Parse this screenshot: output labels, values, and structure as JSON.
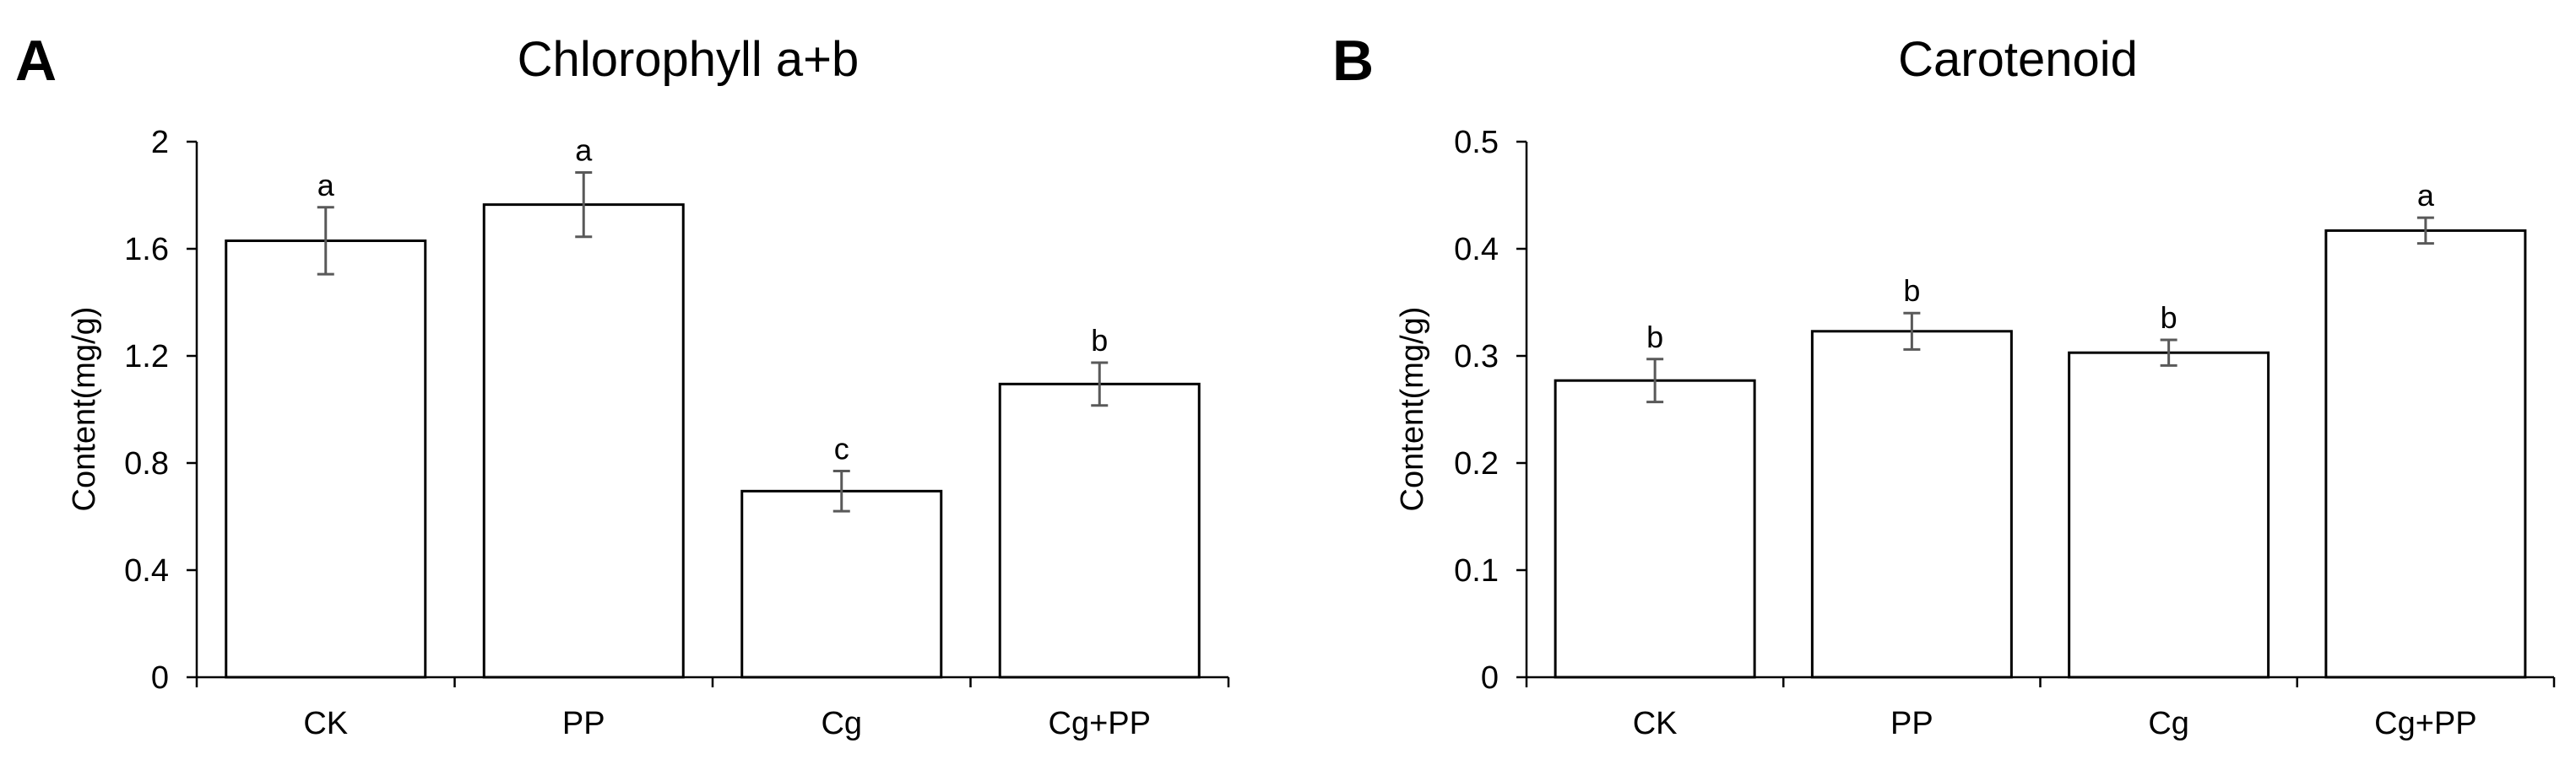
{
  "chart_data": [
    {
      "panel": "A",
      "type": "bar",
      "title": "Chlorophyll a+b",
      "xlabel": "",
      "ylabel": "Content(mg/g)",
      "categories": [
        "CK",
        "PP",
        "Cg",
        "Cg+PP"
      ],
      "values": [
        1.63,
        1.765,
        0.695,
        1.095
      ],
      "errors": [
        0.125,
        0.12,
        0.075,
        0.08
      ],
      "significance": [
        "a",
        "a",
        "c",
        "b"
      ],
      "ylim": [
        0,
        2
      ],
      "yticks": [
        "0",
        "0.4",
        "0.8",
        "1.2",
        "1.6",
        "2"
      ],
      "grid": false,
      "colors": {
        "bar_fill": "#ffffff",
        "bar_stroke": "#000000",
        "error_bar": "#595959",
        "axis": "#000000"
      }
    },
    {
      "panel": "B",
      "type": "bar",
      "title": "Carotenoid",
      "xlabel": "",
      "ylabel": "Content(mg/g)",
      "categories": [
        "CK",
        "PP",
        "Cg",
        "Cg+PP"
      ],
      "values": [
        0.277,
        0.323,
        0.303,
        0.417
      ],
      "errors": [
        0.02,
        0.017,
        0.012,
        0.012
      ],
      "significance": [
        "b",
        "b",
        "b",
        "a"
      ],
      "ylim": [
        0,
        0.5
      ],
      "yticks": [
        "0",
        "0.1",
        "0.2",
        "0.3",
        "0.4",
        "0.5"
      ],
      "grid": false,
      "colors": {
        "bar_fill": "#ffffff",
        "bar_stroke": "#000000",
        "error_bar": "#595959",
        "axis": "#000000"
      }
    }
  ]
}
